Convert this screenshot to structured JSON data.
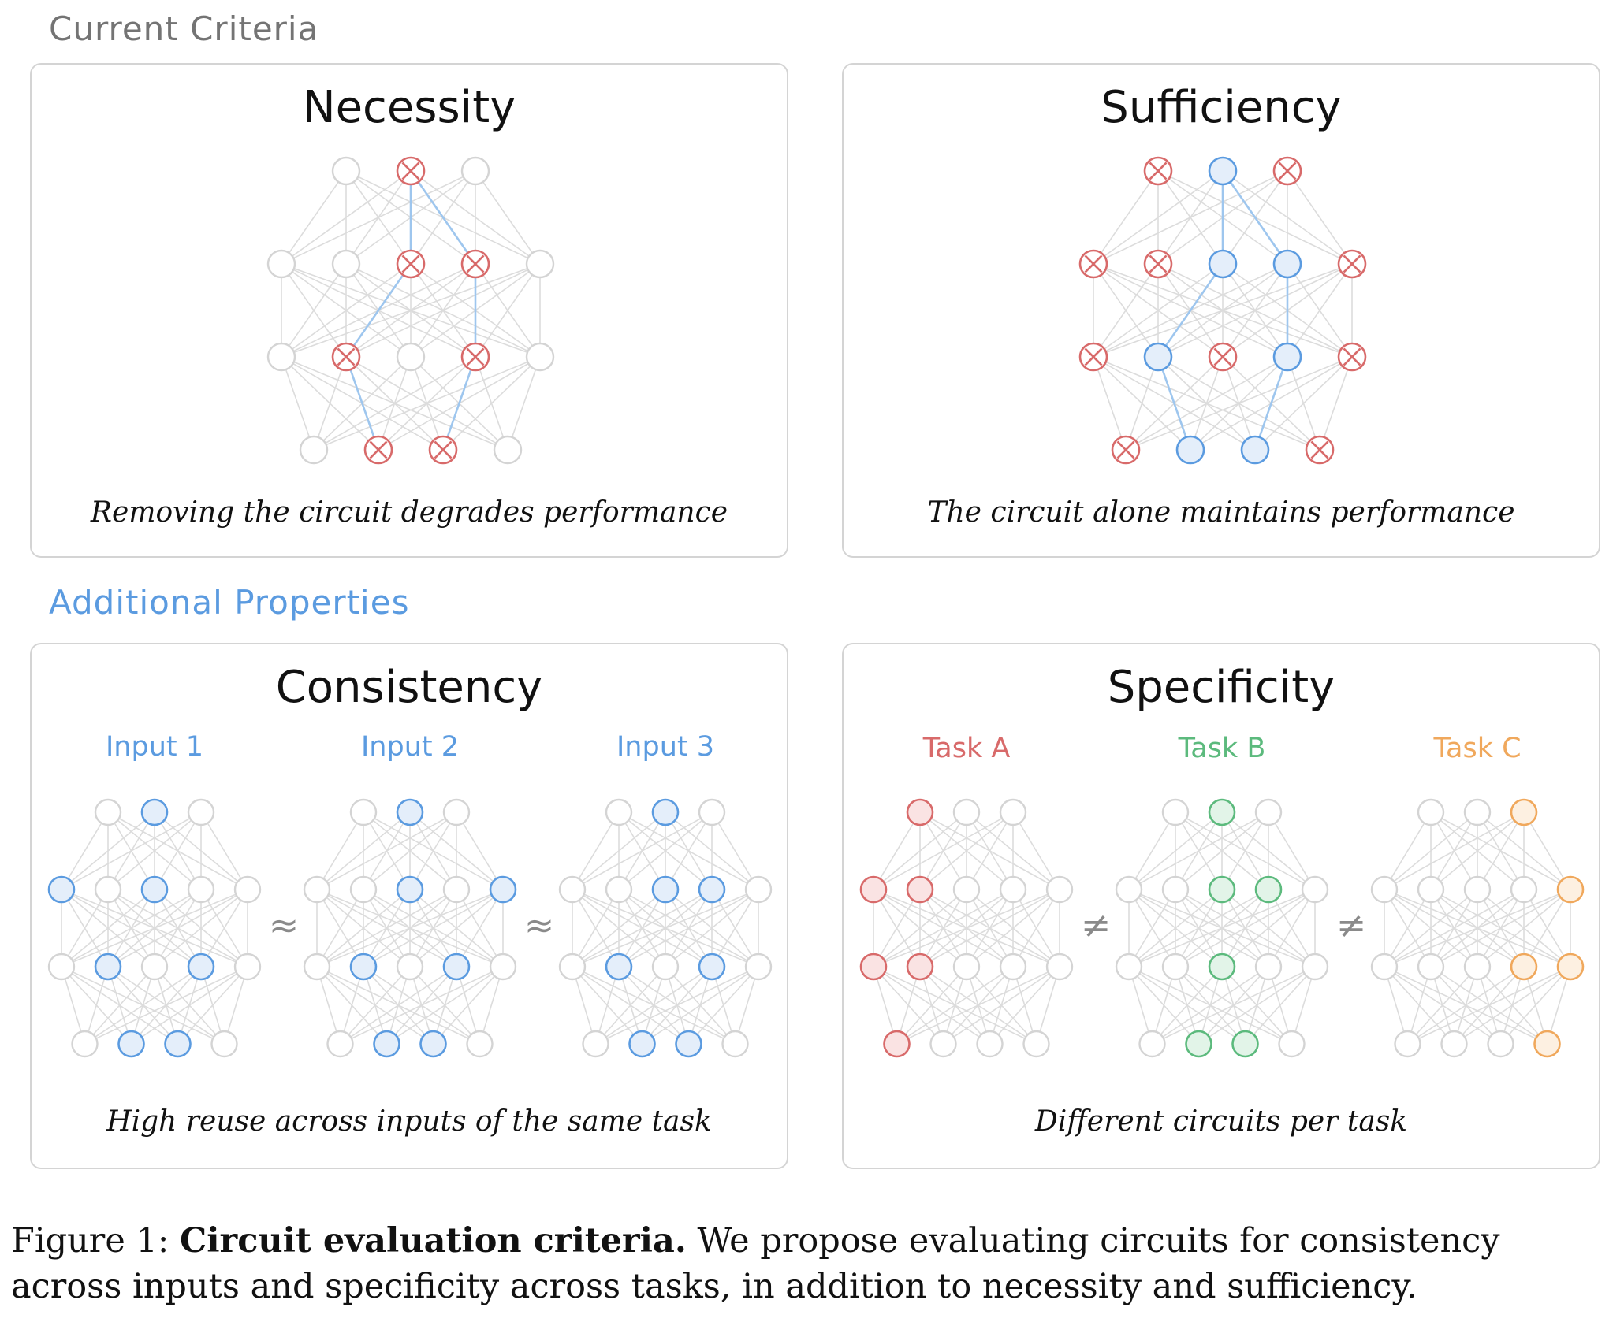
{
  "sections": {
    "current": "Current Criteria",
    "additional": "Additional Properties"
  },
  "panels": {
    "necessity": {
      "title": "Necessity",
      "caption": "Removing the circuit degrades performance"
    },
    "sufficiency": {
      "title": "Sufficiency",
      "caption": "The circuit alone maintains performance"
    },
    "consistency": {
      "title": "Consistency",
      "caption": "High reuse across inputs of the same task",
      "inputs": [
        "Input 1",
        "Input 2",
        "Input 3"
      ],
      "operator": "≈"
    },
    "specificity": {
      "title": "Specificity",
      "caption": "Different circuits per task",
      "tasks": [
        "Task A",
        "Task B",
        "Task C"
      ],
      "operator": "≠"
    }
  },
  "figure_caption": {
    "label": "Figure 1: ",
    "bold": "Circuit evaluation criteria.",
    "text": " We propose evaluating circuits for consistency across inputs and specificity across tasks, in addition to necessity and sufficiency."
  },
  "colors": {
    "blue": "#5b9be0",
    "red": "#d86a6a",
    "green": "#5cba7d",
    "orange": "#f0a85c",
    "gray": "#d4d4d4"
  }
}
